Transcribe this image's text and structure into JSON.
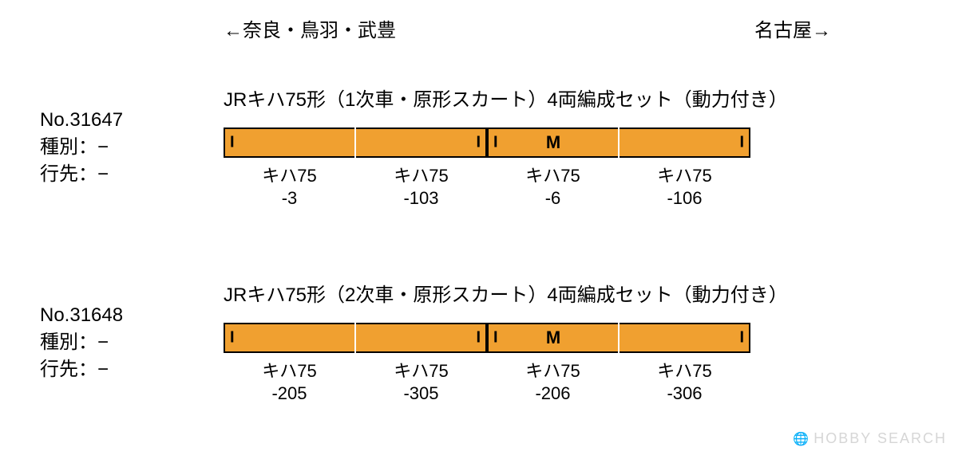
{
  "colors": {
    "car_fill": "#f0a030",
    "car_border": "#000000",
    "white_sep": "#ffffff",
    "text": "#000000",
    "background": "#ffffff",
    "watermark": "#d6d6d6"
  },
  "typography": {
    "body_fontsize": 24,
    "car_label_fontsize": 22,
    "marker_fontsize": 22
  },
  "directions": {
    "left": "←奈良・鳥羽・武豊",
    "right": "名古屋→"
  },
  "sets": [
    {
      "product_no": "No.31647",
      "type_label": "種別：−",
      "dest_label": "行先：−",
      "title": "JRキハ75形（1次車・原形スカート）4両編成セット（動力付き）",
      "cars": [
        {
          "name": "キハ75",
          "num": "-3",
          "left_i": true,
          "right_i": false,
          "m": false
        },
        {
          "name": "キハ75",
          "num": "-103",
          "left_i": false,
          "right_i": true,
          "m": false
        },
        {
          "name": "キハ75",
          "num": "-6",
          "left_i": true,
          "right_i": false,
          "m": true
        },
        {
          "name": "キハ75",
          "num": "-106",
          "left_i": false,
          "right_i": true,
          "m": false
        }
      ],
      "separators": [
        "white",
        "black-pair",
        "white"
      ]
    },
    {
      "product_no": "No.31648",
      "type_label": "種別：−",
      "dest_label": "行先：−",
      "title": "JRキハ75形（2次車・原形スカート）4両編成セット（動力付き）",
      "cars": [
        {
          "name": "キハ75",
          "num": "-205",
          "left_i": true,
          "right_i": false,
          "m": false
        },
        {
          "name": "キハ75",
          "num": "-305",
          "left_i": false,
          "right_i": true,
          "m": false
        },
        {
          "name": "キハ75",
          "num": "-206",
          "left_i": true,
          "right_i": false,
          "m": true
        },
        {
          "name": "キハ75",
          "num": "-306",
          "left_i": false,
          "right_i": true,
          "m": false
        }
      ],
      "separators": [
        "white",
        "black-pair",
        "white"
      ]
    }
  ],
  "markers": {
    "I": "I",
    "M": "M"
  },
  "watermark": "HOBBY SEARCH"
}
